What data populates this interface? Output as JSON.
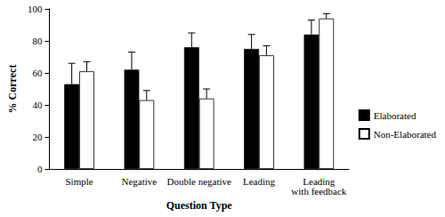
{
  "chart_data": {
    "type": "bar",
    "x_label": "Question Type",
    "y_label": "% Correct",
    "categories": [
      "Simple",
      "Negative",
      "Double negative",
      "Leading",
      "Leading with feedback"
    ],
    "series": [
      {
        "name": "Elaborated",
        "color": "#000000",
        "values": [
          53,
          62,
          76,
          75,
          84
        ],
        "errors": [
          13,
          11,
          9,
          9,
          9
        ]
      },
      {
        "name": "Non-Elaborated",
        "color": "#ffffff",
        "values": [
          61,
          43,
          44,
          71,
          94
        ],
        "errors": [
          6,
          6,
          6,
          6,
          3
        ]
      }
    ],
    "ylim": [
      0,
      100
    ],
    "yticks": [
      0,
      20,
      40,
      60,
      80,
      100
    ],
    "grid": false,
    "legend": "right"
  }
}
